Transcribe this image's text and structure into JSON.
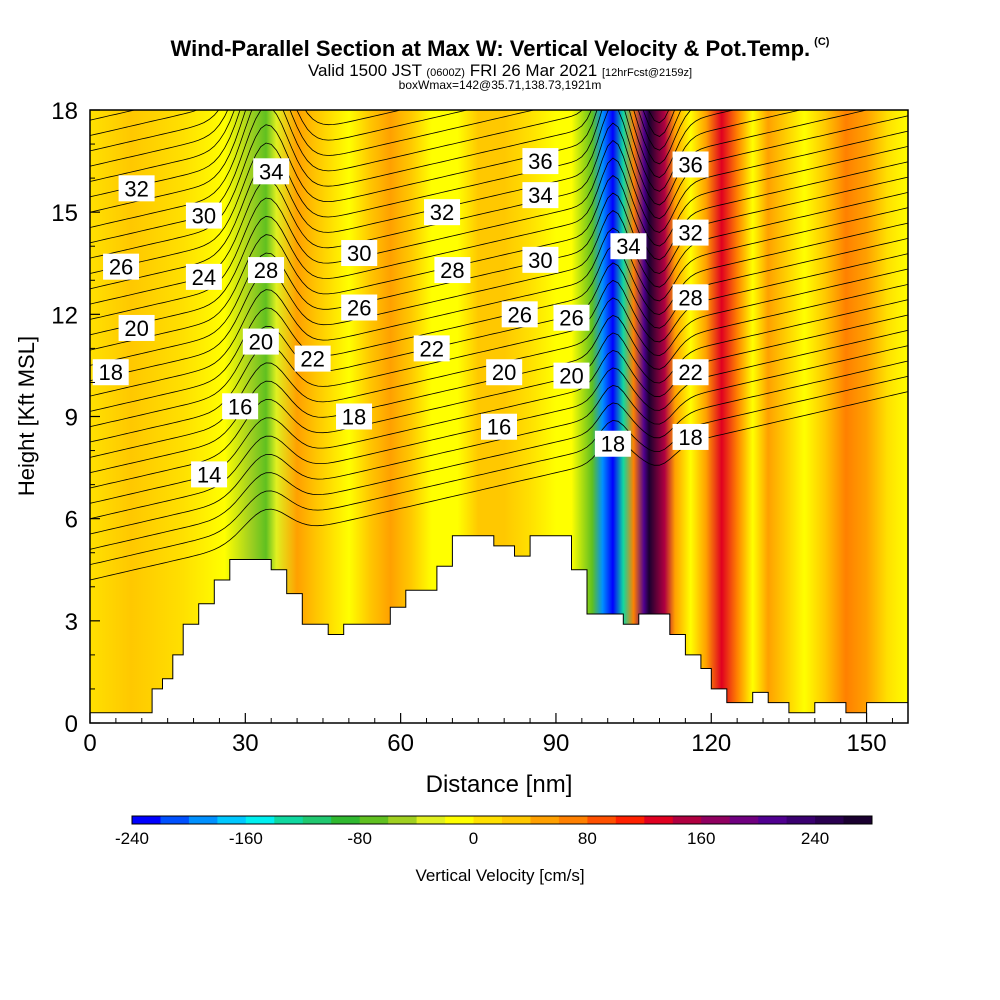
{
  "title": {
    "main": "Wind-Parallel Section at Max W: Vertical Velocity & Pot.Temp.",
    "copyright": "(C)",
    "valid_prefix": "Valid 1500 JST",
    "valid_utc": "(0600Z)",
    "valid_date": "FRI 26 Mar 2021",
    "forecast": "[12hrFcst@2159z]",
    "boxinfo": "boxWmax=142@35.71,138.73,1921m"
  },
  "chart_data": {
    "type": "heatmap",
    "xlabel": "Distance [nm]",
    "ylabel": "Height [Kft MSL]",
    "xlim": [
      0,
      158
    ],
    "ylim": [
      0,
      18
    ],
    "x_ticks": [
      0,
      30,
      60,
      90,
      120,
      150
    ],
    "y_ticks": [
      0,
      3,
      6,
      9,
      12,
      15,
      18
    ],
    "colorbar": {
      "label": "Vertical Velocity [cm/s]",
      "min": -240,
      "max": 280,
      "step": 20,
      "tick_labels": [
        -240,
        -160,
        -80,
        0,
        80,
        160,
        240
      ],
      "colors": [
        "#0000ff",
        "#0050ff",
        "#0090ff",
        "#00c8ff",
        "#00f0f0",
        "#10d8a0",
        "#20c870",
        "#30b830",
        "#60c020",
        "#a0d020",
        "#e0f020",
        "#ffff00",
        "#ffe000",
        "#ffc800",
        "#ffa000",
        "#ff8000",
        "#ff5000",
        "#ff2000",
        "#e00020",
        "#b00040",
        "#900060",
        "#700080",
        "#500090",
        "#3a0070",
        "#2a0050",
        "#1a0030"
      ]
    },
    "w_bands": [
      {
        "x": 0,
        "w": 0
      },
      {
        "x": 8,
        "w": 10
      },
      {
        "x": 18,
        "w": -8
      },
      {
        "x": 26,
        "w": -20
      },
      {
        "x": 31,
        "w": -60
      },
      {
        "x": 34,
        "w": -90
      },
      {
        "x": 36,
        "w": -40
      },
      {
        "x": 40,
        "w": 40
      },
      {
        "x": 44,
        "w": 10
      },
      {
        "x": 50,
        "w": -20
      },
      {
        "x": 54,
        "w": 10
      },
      {
        "x": 58,
        "w": 30
      },
      {
        "x": 62,
        "w": 10
      },
      {
        "x": 66,
        "w": -30
      },
      {
        "x": 71,
        "w": -20
      },
      {
        "x": 75,
        "w": 20
      },
      {
        "x": 80,
        "w": 10
      },
      {
        "x": 85,
        "w": -10
      },
      {
        "x": 90,
        "w": -20
      },
      {
        "x": 93,
        "w": -30
      },
      {
        "x": 97,
        "w": -80
      },
      {
        "x": 99,
        "w": -200
      },
      {
        "x": 101,
        "w": -240
      },
      {
        "x": 103,
        "w": -140
      },
      {
        "x": 105,
        "w": 60
      },
      {
        "x": 107,
        "w": 200
      },
      {
        "x": 108,
        "w": 260
      },
      {
        "x": 111,
        "w": 140
      },
      {
        "x": 113,
        "w": 40
      },
      {
        "x": 116,
        "w": -30
      },
      {
        "x": 119,
        "w": 40
      },
      {
        "x": 122,
        "w": 120
      },
      {
        "x": 125,
        "w": 60
      },
      {
        "x": 128,
        "w": -20
      },
      {
        "x": 131,
        "w": 40
      },
      {
        "x": 134,
        "w": 20
      },
      {
        "x": 138,
        "w": -20
      },
      {
        "x": 142,
        "w": 10
      },
      {
        "x": 146,
        "w": 60
      },
      {
        "x": 150,
        "w": 30
      },
      {
        "x": 154,
        "w": 0
      },
      {
        "x": 158,
        "w": -20
      }
    ],
    "terrain": [
      [
        0,
        0.3
      ],
      [
        12,
        0.3
      ],
      [
        12,
        1.0
      ],
      [
        14,
        1.0
      ],
      [
        14,
        1.3
      ],
      [
        16,
        1.3
      ],
      [
        16,
        2.0
      ],
      [
        18,
        2.0
      ],
      [
        18,
        2.9
      ],
      [
        21,
        2.9
      ],
      [
        21,
        3.5
      ],
      [
        24,
        3.5
      ],
      [
        24,
        4.2
      ],
      [
        27,
        4.2
      ],
      [
        27,
        4.8
      ],
      [
        35,
        4.8
      ],
      [
        35,
        4.5
      ],
      [
        38,
        4.5
      ],
      [
        38,
        3.8
      ],
      [
        41,
        3.8
      ],
      [
        41,
        2.9
      ],
      [
        46,
        2.9
      ],
      [
        46,
        2.6
      ],
      [
        49,
        2.6
      ],
      [
        49,
        2.9
      ],
      [
        58,
        2.9
      ],
      [
        58,
        3.4
      ],
      [
        61,
        3.4
      ],
      [
        61,
        3.9
      ],
      [
        67,
        3.9
      ],
      [
        67,
        4.6
      ],
      [
        70,
        4.6
      ],
      [
        70,
        5.5
      ],
      [
        78,
        5.5
      ],
      [
        78,
        5.2
      ],
      [
        82,
        5.2
      ],
      [
        82,
        4.9
      ],
      [
        85,
        4.9
      ],
      [
        85,
        5.5
      ],
      [
        93,
        5.5
      ],
      [
        93,
        4.5
      ],
      [
        96,
        4.5
      ],
      [
        96,
        3.2
      ],
      [
        103,
        3.2
      ],
      [
        103,
        2.9
      ],
      [
        106,
        2.9
      ],
      [
        106,
        3.2
      ],
      [
        112,
        3.2
      ],
      [
        112,
        2.6
      ],
      [
        115,
        2.6
      ],
      [
        115,
        2.0
      ],
      [
        118,
        2.0
      ],
      [
        118,
        1.6
      ],
      [
        120,
        1.6
      ],
      [
        120,
        1.0
      ],
      [
        123,
        1.0
      ],
      [
        123,
        0.6
      ],
      [
        128,
        0.6
      ],
      [
        128,
        0.9
      ],
      [
        131,
        0.9
      ],
      [
        131,
        0.6
      ],
      [
        135,
        0.6
      ],
      [
        135,
        0.3
      ],
      [
        140,
        0.3
      ],
      [
        140,
        0.6
      ],
      [
        146,
        0.6
      ],
      [
        146,
        0.3
      ],
      [
        150,
        0.3
      ],
      [
        150,
        0.6
      ],
      [
        158,
        0.6
      ]
    ],
    "theta_labels": [
      {
        "x": 9,
        "y": 15.7,
        "text": "32"
      },
      {
        "x": 22,
        "y": 14.9,
        "text": "30"
      },
      {
        "x": 35,
        "y": 16.2,
        "text": "34"
      },
      {
        "x": 6,
        "y": 13.4,
        "text": "26"
      },
      {
        "x": 22,
        "y": 13.1,
        "text": "24"
      },
      {
        "x": 34,
        "y": 13.3,
        "text": "28"
      },
      {
        "x": 52,
        "y": 13.8,
        "text": "30"
      },
      {
        "x": 68,
        "y": 15.0,
        "text": "32"
      },
      {
        "x": 87,
        "y": 16.5,
        "text": "36"
      },
      {
        "x": 87,
        "y": 15.5,
        "text": "34"
      },
      {
        "x": 70,
        "y": 13.3,
        "text": "28"
      },
      {
        "x": 87,
        "y": 13.6,
        "text": "30"
      },
      {
        "x": 9,
        "y": 11.6,
        "text": "20"
      },
      {
        "x": 33,
        "y": 11.2,
        "text": "20"
      },
      {
        "x": 52,
        "y": 12.2,
        "text": "26"
      },
      {
        "x": 83,
        "y": 12.0,
        "text": "26"
      },
      {
        "x": 93,
        "y": 11.9,
        "text": "26"
      },
      {
        "x": 4,
        "y": 10.3,
        "text": "18"
      },
      {
        "x": 43,
        "y": 10.7,
        "text": "22"
      },
      {
        "x": 66,
        "y": 11.0,
        "text": "22"
      },
      {
        "x": 80,
        "y": 10.3,
        "text": "20"
      },
      {
        "x": 93,
        "y": 10.2,
        "text": "20"
      },
      {
        "x": 29,
        "y": 9.3,
        "text": "16"
      },
      {
        "x": 51,
        "y": 9.0,
        "text": "18"
      },
      {
        "x": 79,
        "y": 8.7,
        "text": "16"
      },
      {
        "x": 23,
        "y": 7.3,
        "text": "14"
      },
      {
        "x": 101,
        "y": 8.2,
        "text": "18"
      },
      {
        "x": 104,
        "y": 14.0,
        "text": "34"
      },
      {
        "x": 116,
        "y": 16.4,
        "text": "36"
      },
      {
        "x": 116,
        "y": 14.4,
        "text": "32"
      },
      {
        "x": 116,
        "y": 12.5,
        "text": "28"
      },
      {
        "x": 116,
        "y": 10.3,
        "text": "22"
      },
      {
        "x": 116,
        "y": 8.4,
        "text": "18"
      }
    ]
  }
}
